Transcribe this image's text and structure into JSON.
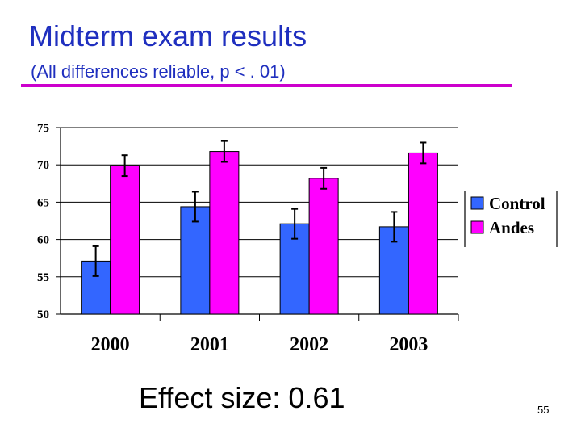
{
  "slide": {
    "title": "Midterm exam results",
    "subtitle": "(All differences reliable, p < . 01)",
    "footer": "Effect size:  0.61",
    "page_number": "55"
  },
  "colors": {
    "title": "#1f2fbf",
    "rule": "#cc00cc",
    "control": "#3366ff",
    "andes": "#ff00ff"
  },
  "chart_data": {
    "type": "bar",
    "categories": [
      "2000",
      "2001",
      "2002",
      "2003"
    ],
    "series": [
      {
        "name": "Control",
        "color": "#3366ff",
        "values": [
          57.1,
          64.4,
          62.1,
          61.7
        ],
        "error": [
          2.0,
          2.0,
          2.0,
          2.0
        ]
      },
      {
        "name": "Andes",
        "color": "#ff00ff",
        "values": [
          69.9,
          71.8,
          68.2,
          71.6
        ],
        "error": [
          1.4,
          1.4,
          1.4,
          1.4
        ]
      }
    ],
    "ylim": [
      50,
      75
    ],
    "yticks": [
      "50",
      "55",
      "60",
      "65",
      "70",
      "75"
    ],
    "grid": true,
    "legend": "right"
  }
}
